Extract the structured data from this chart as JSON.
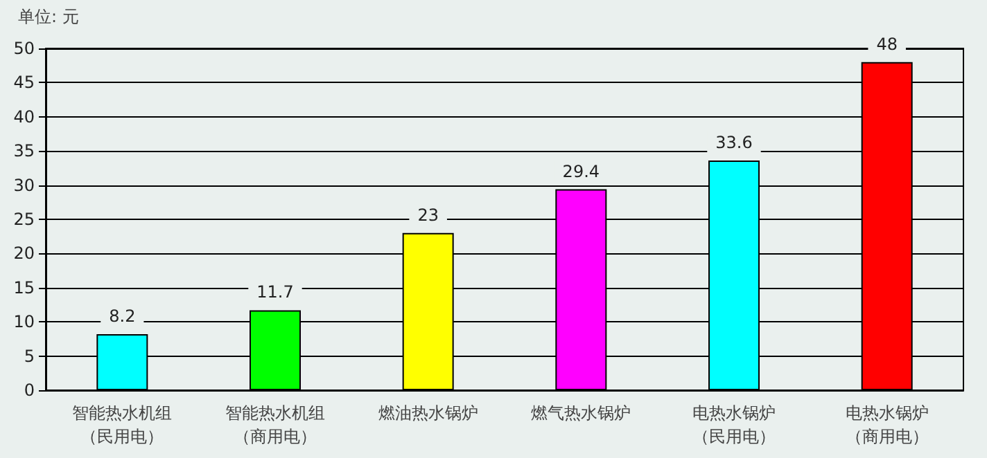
{
  "chart_data": {
    "type": "bar",
    "ylabel": "单位: 元",
    "categories": [
      "智能热水机组（民用电）",
      "智能热水机组（商用电）",
      "燃油热水锅炉",
      "燃气热水锅炉",
      "电热水锅炉（民用电）",
      "电热水锅炉（商用电）"
    ],
    "values": [
      8.2,
      11.7,
      23,
      29.4,
      33.6,
      48
    ],
    "colors": [
      "#00ffff",
      "#00ff00",
      "#ffff00",
      "#ff00ff",
      "#00ffff",
      "#ff0000"
    ],
    "ylim": [
      0,
      50
    ],
    "yticks": [
      0,
      5,
      10,
      15,
      20,
      25,
      30,
      35,
      40,
      45,
      50
    ],
    "grid": "y",
    "data_labels": true
  }
}
